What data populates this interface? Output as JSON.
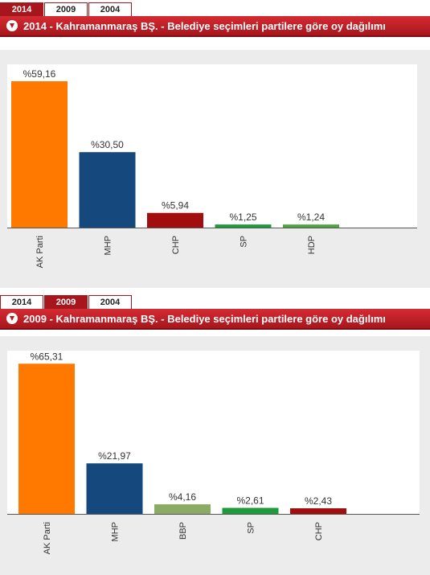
{
  "panels": [
    {
      "tabs": [
        {
          "label": "2014",
          "active": true
        },
        {
          "label": "2009",
          "active": false
        },
        {
          "label": "2004",
          "active": false
        }
      ],
      "title": "2014 - Kahramanmaraş BŞ. - Belediye seçimleri partilere göre oy dağılımı"
    },
    {
      "tabs": [
        {
          "label": "2014",
          "active": false
        },
        {
          "label": "2009",
          "active": true
        },
        {
          "label": "2004",
          "active": false
        }
      ],
      "title": "2009 - Kahramanmaraş BŞ. - Belediye seçimleri partilere göre oy dağılımı"
    }
  ],
  "colors": {
    "accent": "#b31b22",
    "chart_bg": "#ffffff",
    "panel_bg": "#ececec"
  },
  "chart_data": [
    {
      "type": "bar",
      "title": "2014 - Kahramanmaraş BŞ. - Belediye seçimleri partilere göre oy dağılımı",
      "categories": [
        "AK Parti",
        "MHP",
        "CHP",
        "SP",
        "HDP"
      ],
      "values": [
        59.16,
        30.5,
        5.94,
        1.25,
        1.24
      ],
      "data_labels": [
        "%59,16",
        "%30,50",
        "%5,94",
        "%1,25",
        "%1,24"
      ],
      "bar_colors": [
        "#ff7800",
        "#15497e",
        "#a20d0d",
        "#1d9a3a",
        "#4ba640"
      ],
      "ylim": [
        0,
        66
      ],
      "grid": false,
      "legend": "none"
    },
    {
      "type": "bar",
      "title": "2009 - Kahramanmaraş BŞ. - Belediye seçimleri partilere göre oy dağılımı",
      "categories": [
        "AK Parti",
        "MHP",
        "BBP",
        "SP",
        "CHP"
      ],
      "values": [
        65.31,
        21.97,
        4.16,
        2.61,
        2.43
      ],
      "data_labels": [
        "%65,31",
        "%21,97",
        "%4,16",
        "%2,61",
        "%2,43"
      ],
      "bar_colors": [
        "#ff7800",
        "#15497e",
        "#8aab63",
        "#1d9a3a",
        "#a20d0d"
      ],
      "ylim": [
        0,
        71
      ],
      "grid": false,
      "legend": "none"
    }
  ]
}
